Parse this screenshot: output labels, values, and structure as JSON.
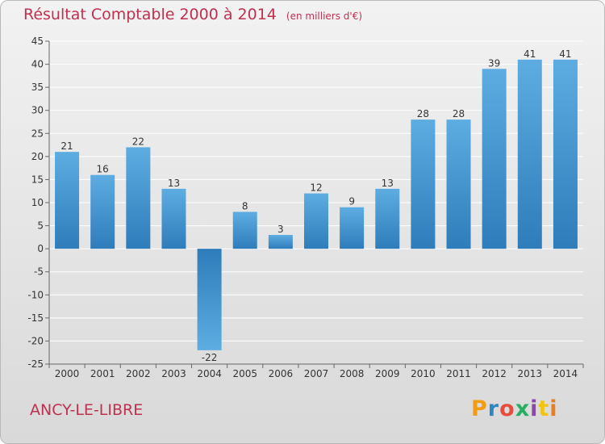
{
  "header": {
    "title": "Résultat Comptable 2000 à 2014",
    "subtitle": "(en milliers d'€)"
  },
  "footer": {
    "commune": "ANCY-LE-LIBRE",
    "logo_letters": [
      "P",
      "r",
      "o",
      "x",
      "i",
      "t",
      "i"
    ],
    "logo_colors": [
      "#f39c12",
      "#2e86c1",
      "#e74c3c",
      "#27ae60",
      "#8e44ad",
      "#f1c40f",
      "#e67e22"
    ]
  },
  "colors": {
    "bar_light": "#5dade2",
    "bar_dark": "#2e7cba",
    "grid": "#ffffff",
    "axis": "#666666"
  },
  "chart_data": {
    "type": "bar",
    "title": "Résultat Comptable 2000 à 2014",
    "subtitle": "(en milliers d'€)",
    "xlabel": "",
    "ylabel": "",
    "ylim": [
      -25,
      45
    ],
    "yticks": [
      45,
      40,
      35,
      30,
      25,
      20,
      15,
      10,
      5,
      0,
      -5,
      -10,
      -15,
      -20,
      -25
    ],
    "grid": true,
    "categories": [
      "2000",
      "2001",
      "2002",
      "2003",
      "2004",
      "2005",
      "2006",
      "2007",
      "2008",
      "2009",
      "2010",
      "2011",
      "2012",
      "2013",
      "2014"
    ],
    "values": [
      21,
      16,
      22,
      13,
      -22,
      8,
      3,
      12,
      9,
      13,
      28,
      28,
      39,
      41,
      41
    ]
  }
}
